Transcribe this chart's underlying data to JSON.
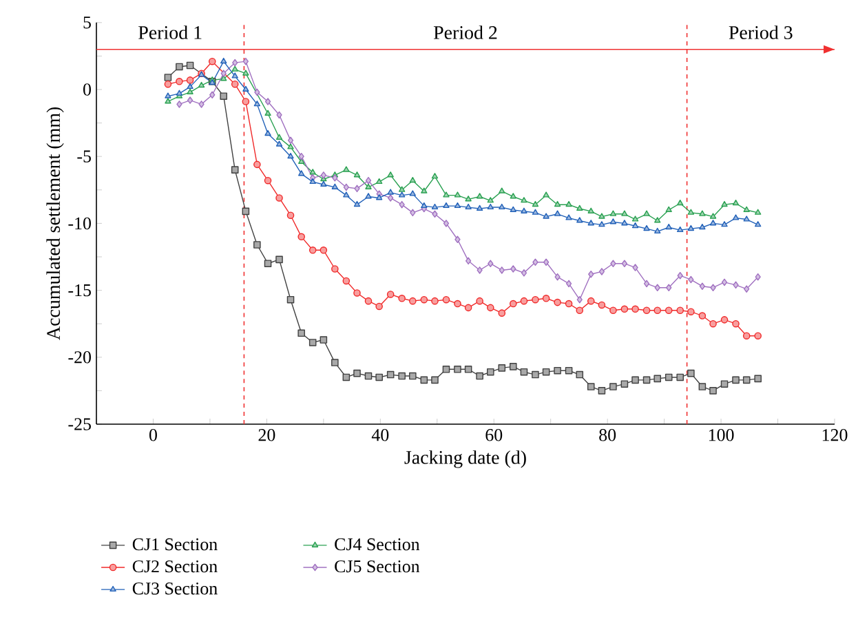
{
  "chart_data": {
    "type": "line",
    "xlabel": "Jacking date (d)",
    "ylabel": "Accumulated settlement (mm)",
    "x": [
      2.6,
      4.6,
      6.5,
      8.5,
      10.4,
      12.4,
      14.4,
      16.3,
      18.3,
      20.2,
      22.2,
      24.2,
      26.1,
      28.1,
      30.0,
      32.0,
      34.0,
      35.9,
      37.9,
      39.8,
      41.8,
      43.8,
      45.7,
      47.7,
      49.6,
      51.6,
      53.6,
      55.5,
      57.5,
      59.4,
      61.4,
      63.4,
      65.3,
      67.3,
      69.2,
      71.2,
      73.2,
      75.1,
      77.1,
      79.0,
      81.0,
      83.0,
      84.9,
      86.9,
      88.8,
      90.8,
      92.8,
      94.7,
      96.7,
      98.6,
      100.6,
      102.6,
      104.5,
      106.5
    ],
    "series": [
      {
        "name": "CJ1 Section",
        "color": "#404040",
        "marker": "square",
        "values": [
          0.9,
          1.7,
          1.8,
          null,
          0.6,
          -0.5,
          -6.0,
          -9.1,
          -11.6,
          -13.0,
          -12.7,
          -15.7,
          -18.2,
          -18.9,
          -18.7,
          -20.4,
          -21.5,
          -21.2,
          -21.4,
          -21.5,
          -21.3,
          -21.4,
          -21.4,
          -21.7,
          -21.7,
          -20.9,
          -20.9,
          -20.9,
          -21.4,
          -21.1,
          -20.8,
          -20.7,
          -21.1,
          -21.3,
          -21.1,
          -21.0,
          -21.0,
          -21.3,
          -22.2,
          -22.5,
          -22.2,
          -22.0,
          -21.7,
          -21.7,
          -21.6,
          -21.5,
          -21.5,
          -21.2,
          -22.2,
          -22.5,
          -22.0,
          -21.7,
          -21.7,
          -21.6
        ]
      },
      {
        "name": "CJ2 Section",
        "color": "#f02828",
        "marker": "circle",
        "values": [
          0.4,
          0.6,
          0.7,
          1.2,
          2.1,
          null,
          0.4,
          -0.9,
          -5.6,
          -6.8,
          -8.1,
          -9.4,
          -11.0,
          -12.0,
          -12.0,
          -13.4,
          -14.3,
          -15.2,
          -15.8,
          -16.2,
          -15.3,
          -15.6,
          -15.8,
          -15.7,
          -15.8,
          -15.7,
          -16.0,
          -16.3,
          -15.8,
          -16.3,
          -16.7,
          -16.0,
          -15.8,
          -15.7,
          -15.6,
          -15.9,
          -16.0,
          -16.5,
          -15.8,
          -16.1,
          -16.5,
          -16.4,
          -16.4,
          -16.5,
          -16.5,
          -16.5,
          -16.5,
          -16.6,
          -16.9,
          -17.5,
          -17.2,
          -17.5,
          -18.4,
          -18.4
        ]
      },
      {
        "name": "CJ3 Section",
        "color": "#2060b8",
        "marker": "triangle",
        "values": [
          -0.5,
          -0.3,
          0.2,
          1.1,
          0.5,
          2.1,
          1.0,
          0.0,
          -1.1,
          -3.3,
          -4.1,
          -5.0,
          -6.3,
          -6.9,
          -7.1,
          -7.3,
          -7.9,
          -8.6,
          -8.0,
          -8.1,
          -7.7,
          -7.9,
          -7.8,
          -8.7,
          -8.8,
          -8.7,
          -8.7,
          -8.8,
          -8.9,
          -8.8,
          -8.8,
          -9.0,
          -9.1,
          -9.2,
          -9.5,
          -9.3,
          -9.6,
          -9.8,
          -10.0,
          -10.1,
          -9.9,
          -10.0,
          -10.2,
          -10.4,
          -10.6,
          -10.3,
          -10.5,
          -10.4,
          -10.3,
          -10.0,
          -10.1,
          -9.6,
          -9.7,
          -10.1
        ]
      },
      {
        "name": "CJ4 Section",
        "color": "#28a050",
        "marker": "triangle",
        "values": [
          -0.9,
          -0.5,
          -0.2,
          0.3,
          0.7,
          0.8,
          1.5,
          1.2,
          null,
          -1.8,
          -3.6,
          -4.3,
          -5.4,
          -6.2,
          -6.7,
          -6.4,
          -6.0,
          -6.4,
          -7.3,
          -6.9,
          -6.4,
          -7.5,
          -6.8,
          -7.6,
          -6.5,
          -7.9,
          -7.9,
          -8.2,
          -8.0,
          -8.3,
          -7.6,
          -8.0,
          -8.3,
          -8.6,
          -7.9,
          -8.6,
          -8.6,
          -8.9,
          -9.1,
          -9.5,
          -9.3,
          -9.3,
          -9.7,
          -9.3,
          -9.8,
          -9.0,
          -8.5,
          -9.2,
          -9.3,
          -9.5,
          -8.6,
          -8.5,
          -9.0,
          -9.2
        ]
      },
      {
        "name": "CJ5 Section",
        "color": "#a070c0",
        "marker": "diamond",
        "values": [
          null,
          -1.1,
          -0.8,
          -1.1,
          -0.4,
          1.2,
          2.0,
          2.1,
          -0.2,
          -0.9,
          -1.9,
          -3.8,
          -5.0,
          -6.6,
          -6.4,
          -6.6,
          -7.3,
          -7.4,
          -6.8,
          -7.8,
          -8.1,
          -8.6,
          -9.2,
          -8.9,
          -9.3,
          -10.0,
          -11.2,
          -12.8,
          -13.5,
          -13.0,
          -13.5,
          -13.4,
          -13.7,
          -12.9,
          -12.9,
          -14.0,
          -14.5,
          -15.7,
          -13.8,
          -13.6,
          -13.0,
          -13.0,
          -13.3,
          -14.5,
          -14.8,
          -14.8,
          -13.9,
          -14.2,
          -14.7,
          -14.8,
          -14.4,
          -14.6,
          -14.9,
          -14.0
        ]
      }
    ],
    "xlim": [
      -10,
      120
    ],
    "xticks": [
      {
        "value": -10,
        "label": null
      },
      0,
      {
        "value": 10,
        "label": null
      },
      20,
      {
        "value": 30,
        "label": null
      },
      40,
      {
        "value": 50,
        "label": null
      },
      60,
      {
        "value": 70,
        "label": null
      },
      80,
      {
        "value": 90,
        "label": null
      },
      100,
      {
        "value": 110,
        "label": null
      },
      120
    ],
    "ylim": [
      -25,
      5
    ],
    "yticks": [
      -25,
      {
        "value": -22.5,
        "label": null
      },
      -20,
      {
        "value": -17.5,
        "label": null
      },
      -15,
      {
        "value": -12.5,
        "label": null
      },
      -10,
      {
        "value": -7.5,
        "label": null
      },
      -5,
      {
        "value": -2.5,
        "label": null
      },
      0,
      {
        "value": 2.5,
        "label": null
      },
      5
    ],
    "ref_lines": [
      {
        "axis": "x",
        "value": 16,
        "color": "#f03030",
        "line_style": "dashed"
      },
      {
        "axis": "x",
        "value": 94,
        "color": "#f03030",
        "line_style": "dashed"
      },
      {
        "axis": "y",
        "value": 3,
        "color": "#f03030",
        "line_style": "solid"
      }
    ],
    "annotations": [
      "Period 1",
      "Period 2",
      "Period 3"
    ],
    "legend": "bottom",
    "grid": false,
    "line_style": "solid"
  }
}
